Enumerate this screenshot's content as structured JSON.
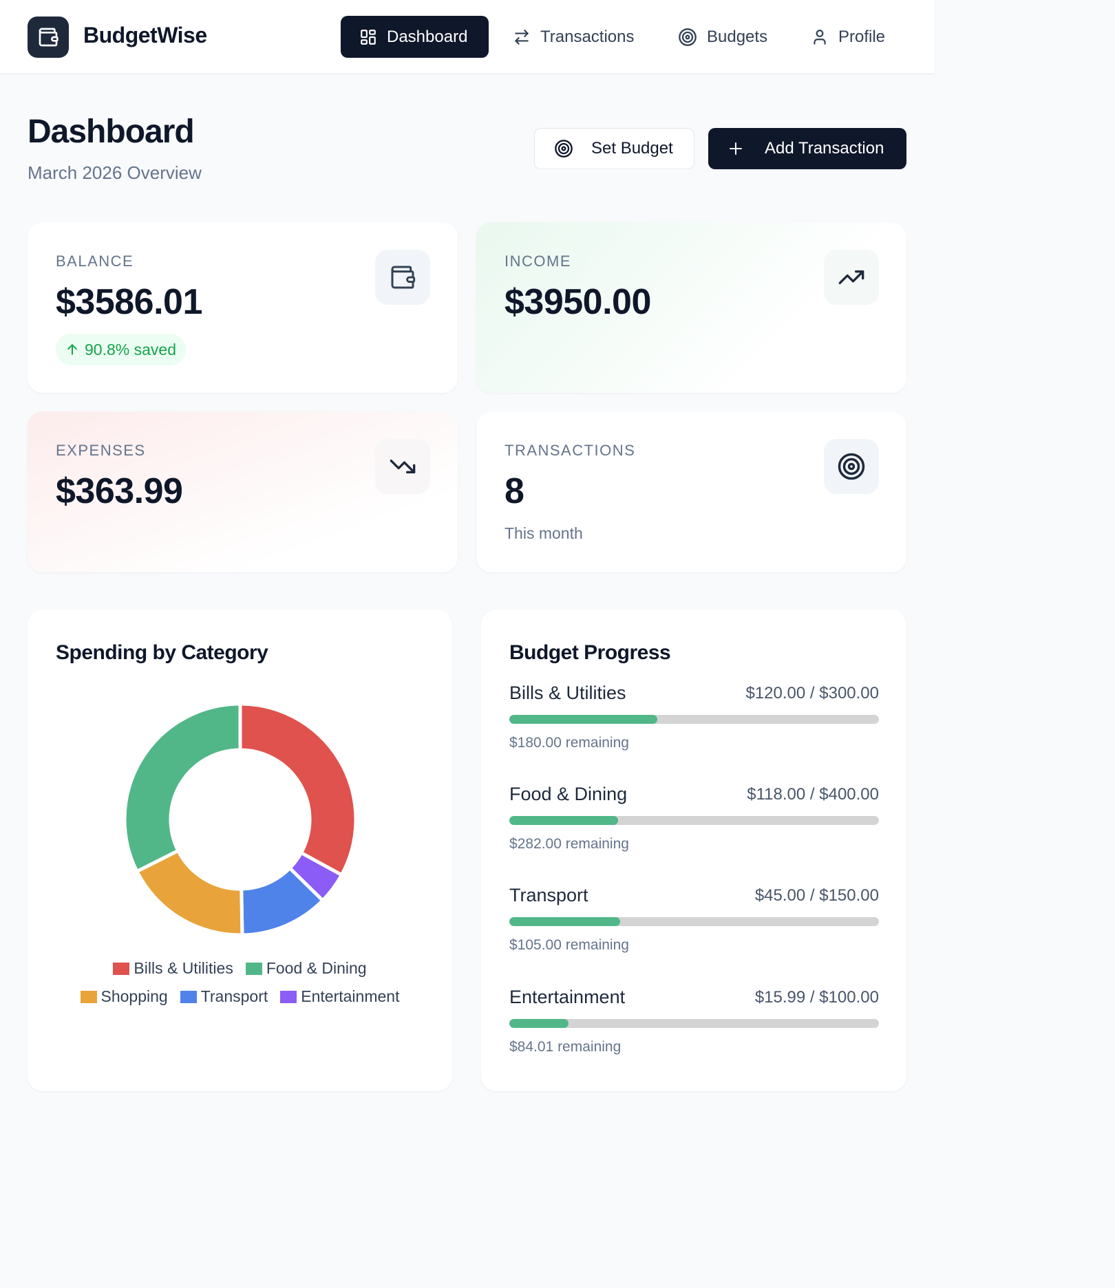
{
  "app": {
    "name": "BudgetWise"
  },
  "nav": [
    {
      "label": "Dashboard",
      "icon": "grid-icon",
      "active": true
    },
    {
      "label": "Transactions",
      "icon": "arrows-swap-icon",
      "active": false
    },
    {
      "label": "Budgets",
      "icon": "target-icon",
      "active": false
    },
    {
      "label": "Profile",
      "icon": "user-icon",
      "active": false
    }
  ],
  "page": {
    "title": "Dashboard",
    "subtitle": "March 2026 Overview",
    "set_budget_label": "Set Budget",
    "add_transaction_label": "Add Transaction"
  },
  "stats": {
    "balance": {
      "label": "BALANCE",
      "value": "$3586.01",
      "badge": "90.8% saved",
      "icon": "wallet-icon"
    },
    "income": {
      "label": "INCOME",
      "value": "$3950.00",
      "icon": "trending-up-icon"
    },
    "expenses": {
      "label": "EXPENSES",
      "value": "$363.99",
      "icon": "trending-down-icon"
    },
    "transactions": {
      "label": "TRANSACTIONS",
      "value": "8",
      "note": "This month",
      "icon": "target-icon"
    }
  },
  "spending": {
    "title": "Spending by Category",
    "legend": [
      {
        "label": "Bills & Utilities",
        "color": "#e0524d"
      },
      {
        "label": "Food & Dining",
        "color": "#52b788"
      },
      {
        "label": "Shopping",
        "color": "#e8a33a"
      },
      {
        "label": "Transport",
        "color": "#4f83ea"
      },
      {
        "label": "Entertainment",
        "color": "#8b5cf6"
      }
    ]
  },
  "chart_data": {
    "type": "pie",
    "categories": [
      "Bills & Utilities",
      "Entertainment",
      "Transport",
      "Shopping",
      "Food & Dining"
    ],
    "values": [
      120.0,
      15.99,
      45.0,
      65.0,
      118.0
    ],
    "colors": [
      "#e0524d",
      "#8b5cf6",
      "#4f83ea",
      "#e8a33a",
      "#52b788"
    ],
    "title": "Spending by Category",
    "legend": "bottom"
  },
  "budget": {
    "title": "Budget Progress",
    "items": [
      {
        "name": "Bills & Utilities",
        "amount": "$120.00 / $300.00",
        "remaining": "$180.00 remaining",
        "spent": 120.0,
        "limit": 300.0
      },
      {
        "name": "Food & Dining",
        "amount": "$118.00 / $400.00",
        "remaining": "$282.00 remaining",
        "spent": 118.0,
        "limit": 400.0
      },
      {
        "name": "Transport",
        "amount": "$45.00 / $150.00",
        "remaining": "$105.00 remaining",
        "spent": 45.0,
        "limit": 150.0
      },
      {
        "name": "Entertainment",
        "amount": "$15.99 / $100.00",
        "remaining": "$84.01 remaining",
        "spent": 15.99,
        "limit": 100.0
      }
    ]
  }
}
